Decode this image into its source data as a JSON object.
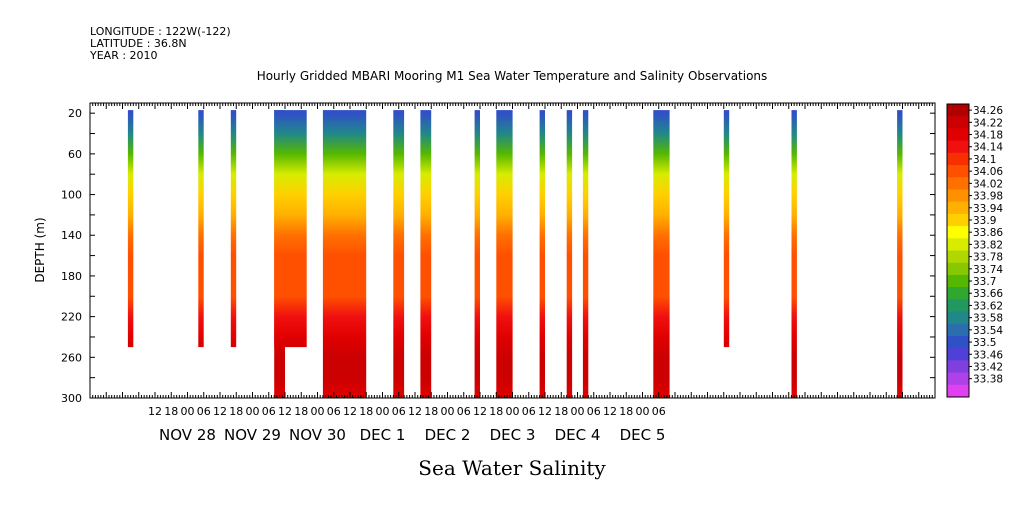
{
  "header": {
    "line1": "LONGITUDE : 122W(-122)",
    "line2": "LATITUDE : 36.8N",
    "line3": "YEAR : 2010"
  },
  "chart_data": {
    "type": "heatmap",
    "title": "Hourly Gridded MBARI Mooring M1 Sea Water Temperature and Salinity Observations",
    "xlabel": "Sea Water Salinity",
    "ylabel": "DEPTH (m)",
    "ylim": [
      300,
      10
    ],
    "y_ticks": [
      20,
      60,
      100,
      140,
      180,
      220,
      260,
      300
    ],
    "x_hour_ticks": [
      "12",
      "18",
      "00",
      "06",
      "12",
      "18",
      "00",
      "06",
      "12",
      "18",
      "00",
      "06",
      "12",
      "18",
      "00",
      "06",
      "12",
      "18",
      "00",
      "06",
      "12",
      "18",
      "00",
      "06",
      "12",
      "18",
      "00",
      "06",
      "12",
      "18",
      "00",
      "06"
    ],
    "date_labels": [
      "NOV 28",
      "NOV 29",
      "NOV 30",
      "DEC 1",
      "DEC 2",
      "DEC 3",
      "DEC 4",
      "DEC 5"
    ],
    "colorbar": {
      "labels": [
        "34.26",
        "34.22",
        "34.18",
        "34.14",
        "34.1",
        "34.06",
        "34.02",
        "33.98",
        "33.94",
        "33.9",
        "33.86",
        "33.82",
        "33.78",
        "33.74",
        "33.7",
        "33.66",
        "33.62",
        "33.58",
        "33.54",
        "33.5",
        "33.46",
        "33.42",
        "33.38"
      ],
      "colors": [
        "#b00000",
        "#cc0000",
        "#e00000",
        "#f01010",
        "#f83000",
        "#ff5000",
        "#ff7000",
        "#ff9000",
        "#ffb000",
        "#ffd000",
        "#ffff00",
        "#d8ec00",
        "#b0d800",
        "#88c800",
        "#55b800",
        "#30a830",
        "#209860",
        "#208888",
        "#2a6eb0",
        "#3050c8",
        "#5040d8",
        "#8040e0",
        "#b040e8",
        "#e040f0"
      ],
      "min": 33.38,
      "max": 34.26
    },
    "profile": {
      "depths": [
        20,
        40,
        60,
        80,
        100,
        120,
        140,
        160,
        180,
        200,
        220,
        240,
        260,
        280,
        300
      ],
      "salinity": [
        33.52,
        33.62,
        33.74,
        33.84,
        33.93,
        33.97,
        34.02,
        34.05,
        34.06,
        34.08,
        34.13,
        34.2,
        34.24,
        34.22,
        34.2
      ]
    },
    "columns": [
      {
        "start_h": 50,
        "end_h": 52,
        "max_depth": 250
      },
      {
        "start_h": 76,
        "end_h": 78,
        "max_depth": 250
      },
      {
        "start_h": 88,
        "end_h": 90,
        "max_depth": 250
      },
      {
        "start_h": 104,
        "end_h": 116,
        "max_depth": 250
      },
      {
        "start_h": 104,
        "end_h": 108,
        "max_depth": 300
      },
      {
        "start_h": 122,
        "end_h": 138,
        "max_depth": 300
      },
      {
        "start_h": 148,
        "end_h": 152,
        "max_depth": 300
      },
      {
        "start_h": 158,
        "end_h": 162,
        "max_depth": 300
      },
      {
        "start_h": 178,
        "end_h": 180,
        "max_depth": 300
      },
      {
        "start_h": 186,
        "end_h": 192,
        "max_depth": 300
      },
      {
        "start_h": 202,
        "end_h": 204,
        "max_depth": 300
      },
      {
        "start_h": 212,
        "end_h": 214,
        "max_depth": 300
      },
      {
        "start_h": 218,
        "end_h": 220,
        "max_depth": 300
      },
      {
        "start_h": 244,
        "end_h": 250,
        "max_depth": 300
      },
      {
        "start_h": 270,
        "end_h": 272,
        "max_depth": 250
      },
      {
        "start_h": 295,
        "end_h": 297,
        "max_depth": 300
      },
      {
        "start_h": 334,
        "end_h": 336,
        "max_depth": 300
      }
    ]
  }
}
